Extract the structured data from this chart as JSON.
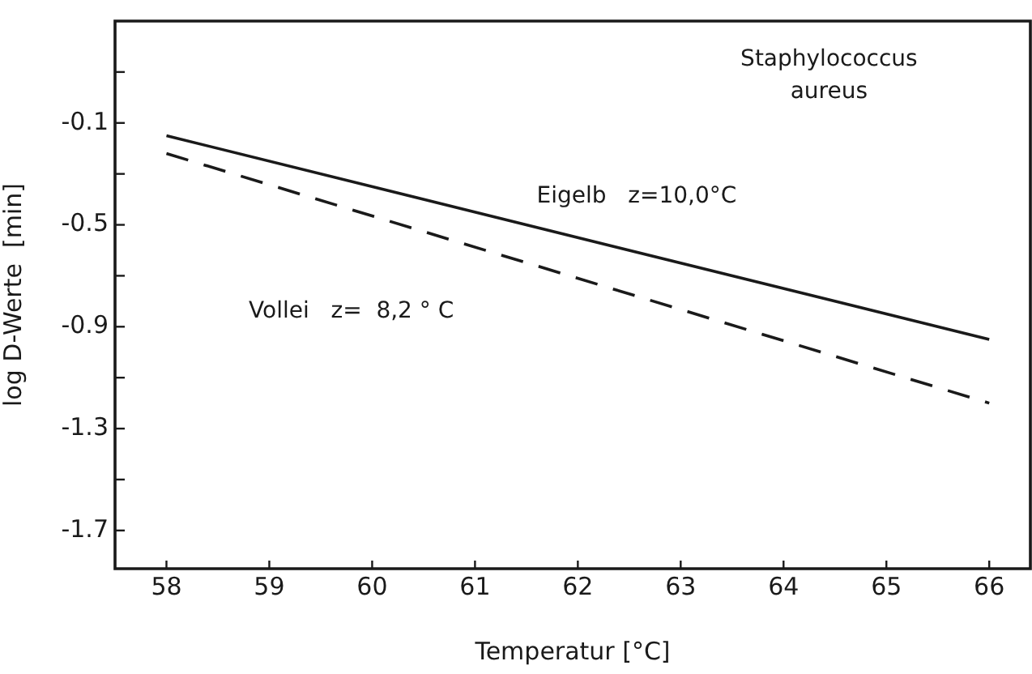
{
  "chart_data": {
    "type": "line",
    "xlabel": "Temperatur [°C]",
    "ylabel": "log D-Werte  [min]",
    "annotations": [
      "Staphylococcus\naureus"
    ],
    "x": [
      58,
      66
    ],
    "series": [
      {
        "name": "Eigelb   z=10,0°C",
        "color": "#1a1a1a",
        "line_style": "solid",
        "values": [
          -0.15,
          -0.95
        ]
      },
      {
        "name": "Vollei   z=  8,2 ° C",
        "color": "#1a1a1a",
        "line_style": "dashed",
        "values": [
          -0.22,
          -1.2
        ]
      }
    ],
    "xlim": [
      57.5,
      66.4
    ],
    "xticks": [
      58,
      59,
      60,
      61,
      62,
      63,
      64,
      65,
      66
    ],
    "ylim": [
      -1.85,
      0.3
    ],
    "yticks": [
      {
        "value": 0.1,
        "label": null
      },
      {
        "value": -0.1,
        "label": "-0.1"
      },
      {
        "value": -0.3,
        "label": null
      },
      {
        "value": -0.5,
        "label": "-0.5"
      },
      {
        "value": -0.7,
        "label": null
      },
      {
        "value": -0.9,
        "label": "-0.9"
      },
      {
        "value": -1.1,
        "label": null
      },
      {
        "value": -1.3,
        "label": "-1.3"
      },
      {
        "value": -1.5,
        "label": null
      },
      {
        "value": -1.7,
        "label": "-1.7"
      }
    ],
    "grid": false,
    "legend": false,
    "marker": "none"
  }
}
